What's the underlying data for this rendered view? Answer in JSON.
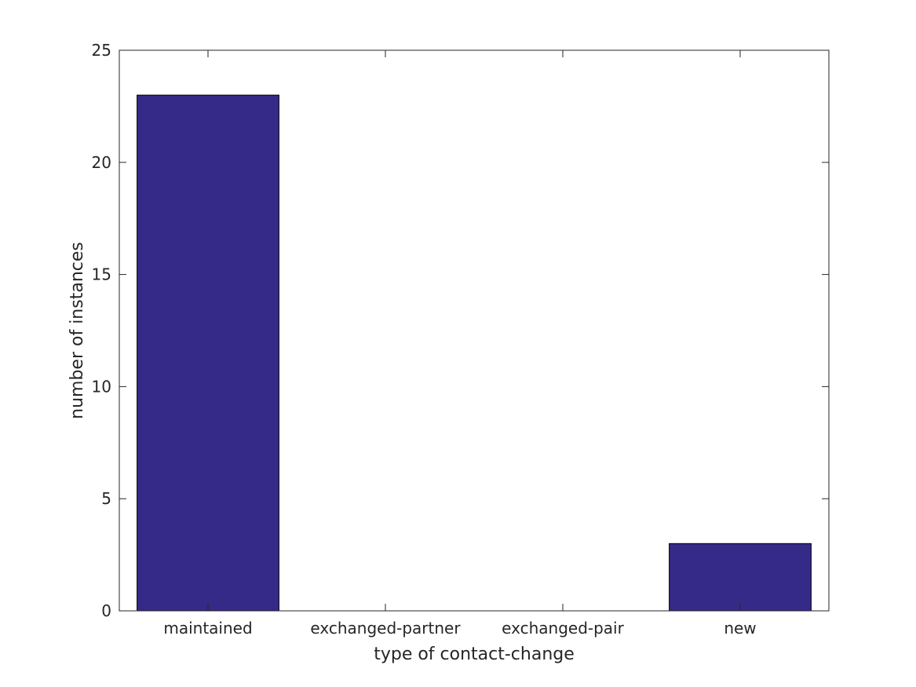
{
  "chart_data": {
    "type": "bar",
    "categories": [
      "maintained",
      "exchanged-partner",
      "exchanged-pair",
      "new"
    ],
    "values": [
      23,
      0,
      0,
      3
    ],
    "xlabel": "type of contact-change",
    "ylabel": "number of instances",
    "ylim": [
      0,
      25
    ],
    "yticks": [
      0,
      5,
      10,
      15,
      20,
      25
    ],
    "grid": false,
    "box": true,
    "bar_color": "#352a87",
    "bar_edge_color": "#000000"
  }
}
